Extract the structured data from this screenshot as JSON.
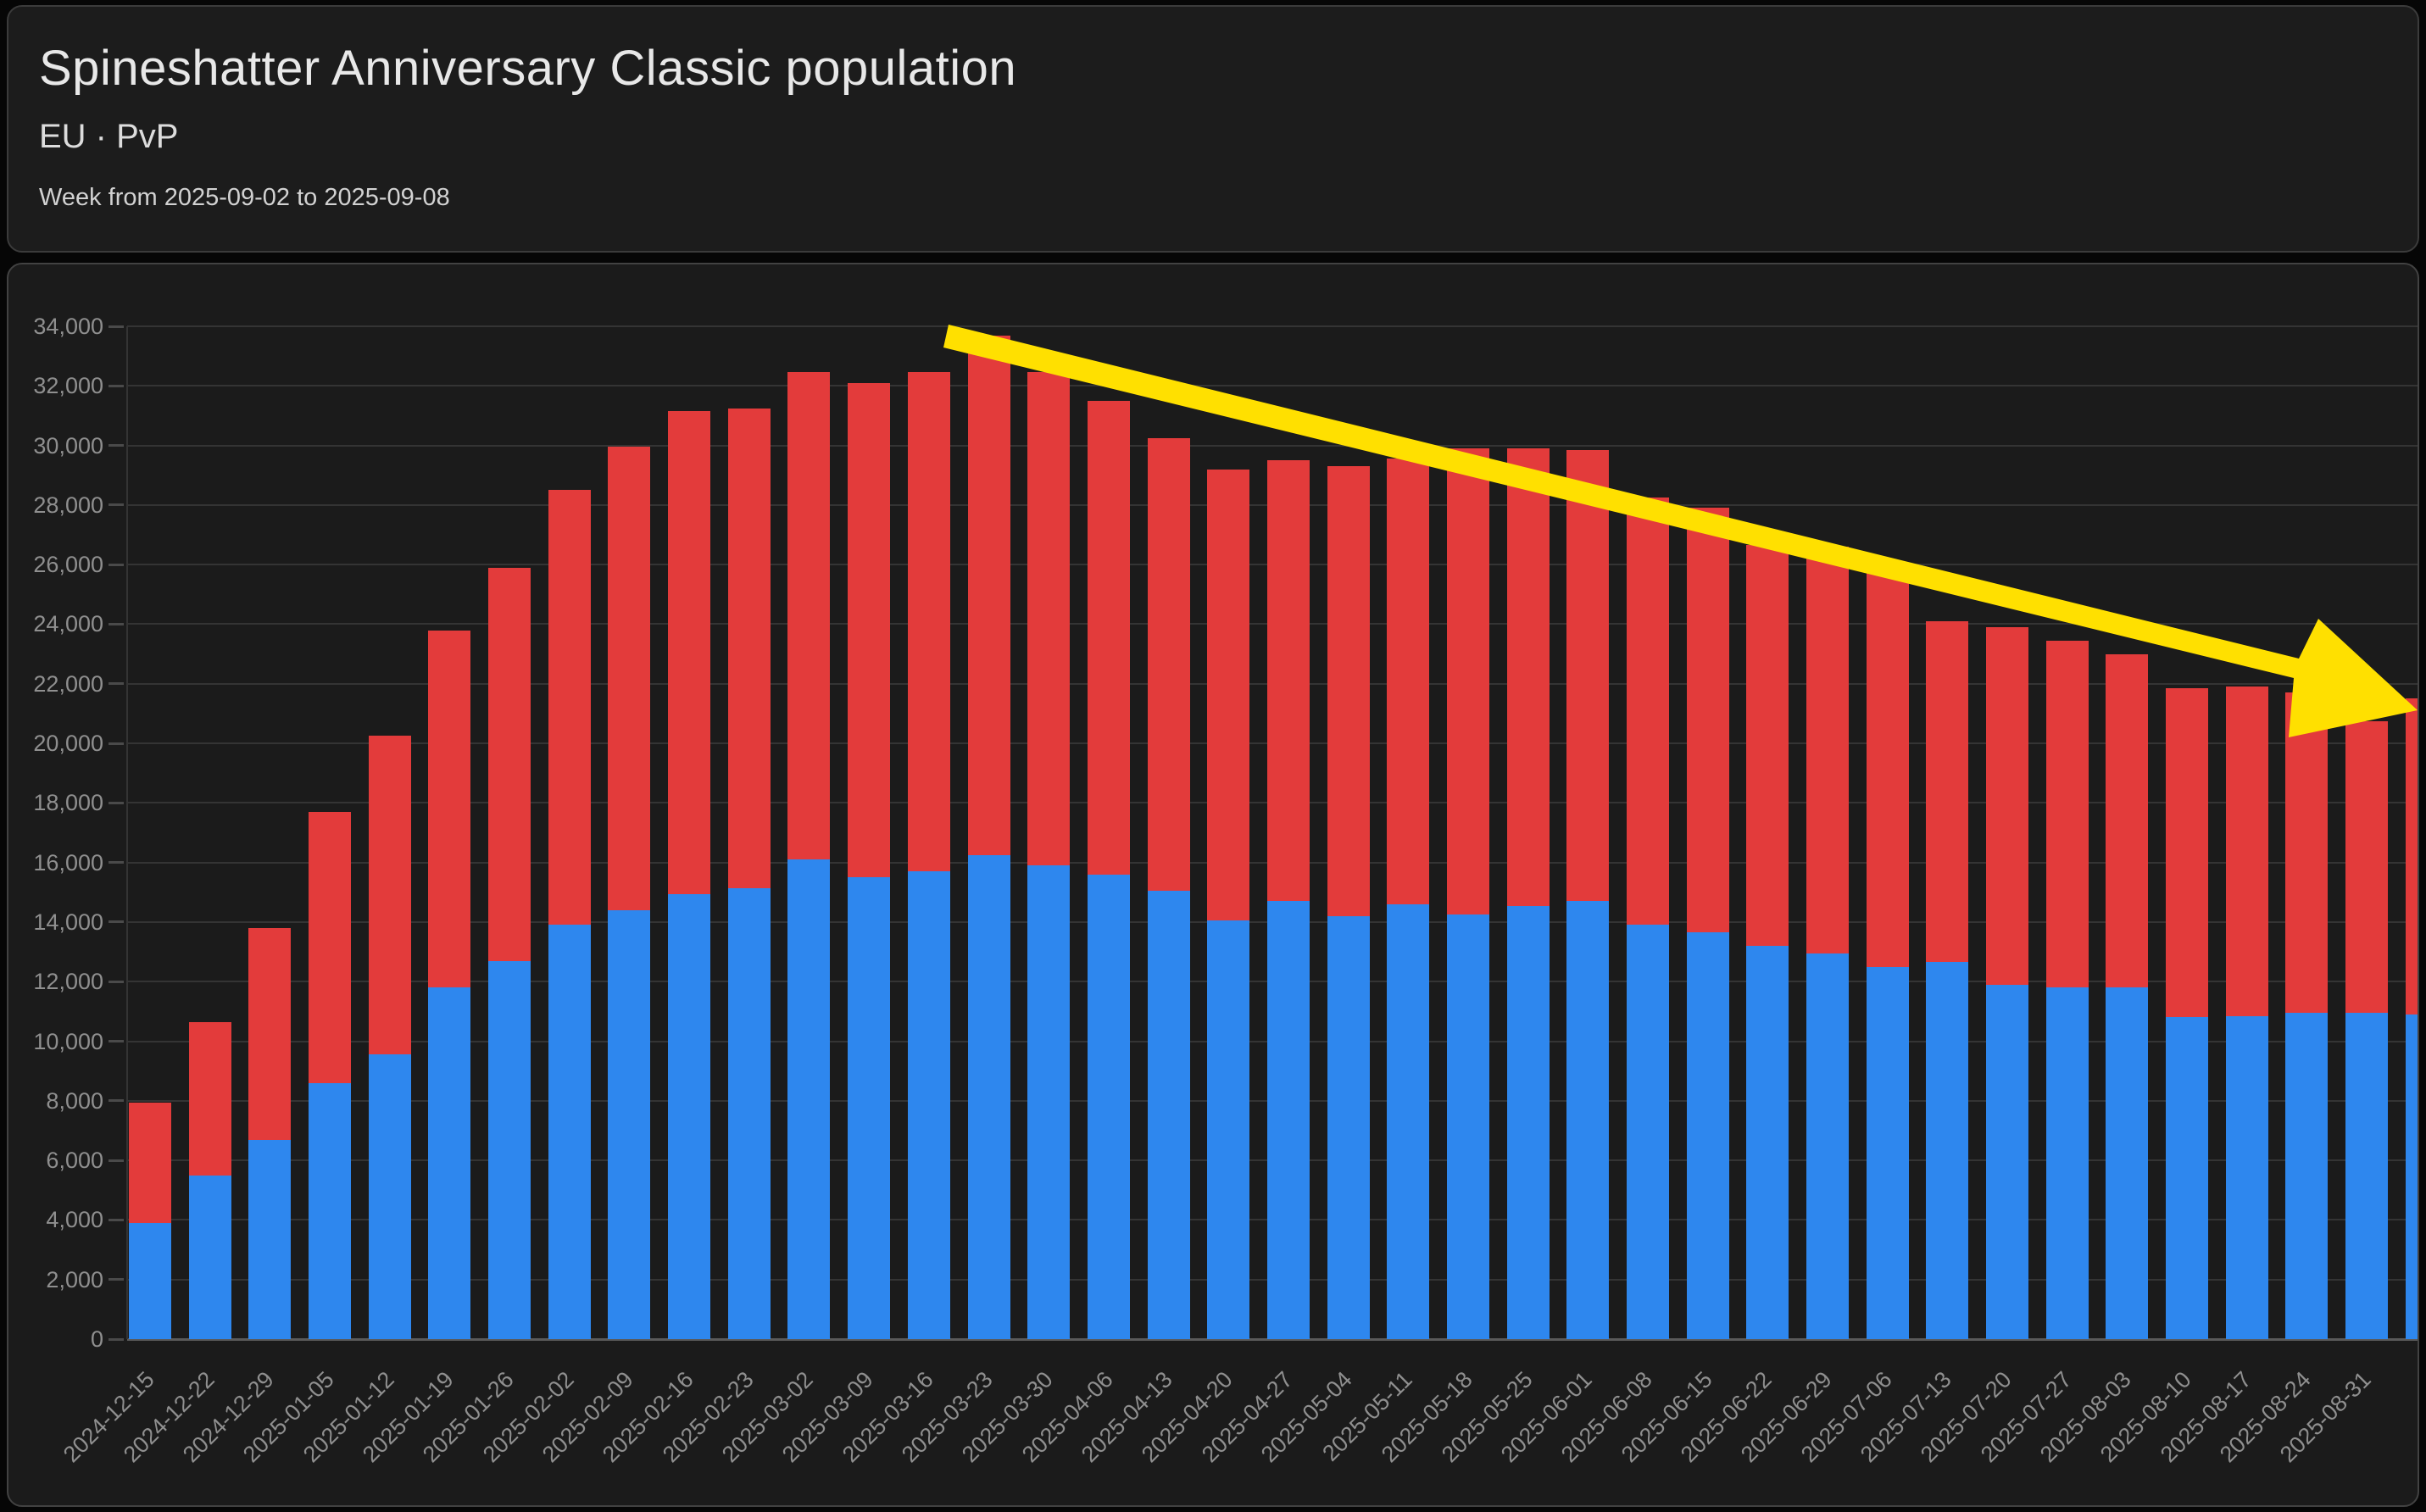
{
  "header": {
    "title": "Spineshatter Anniversary Classic population",
    "subtitle": "EU · PvP",
    "week_label": "Week from 2025-09-02 to 2025-09-08"
  },
  "chart_data": {
    "type": "bar",
    "stacked": true,
    "grid": true,
    "legend": "none",
    "xlabel": "",
    "ylabel": "",
    "ylim": [
      0,
      35000
    ],
    "ytick_step": 2000,
    "ytick_labels": [
      "0",
      "2,000",
      "4,000",
      "6,000",
      "8,000",
      "10,000",
      "12,000",
      "14,000",
      "16,000",
      "18,000",
      "20,000",
      "22,000",
      "24,000",
      "26,000",
      "28,000",
      "30,000",
      "32,000",
      "34,000"
    ],
    "categories": [
      "2024-12-15",
      "2024-12-22",
      "2024-12-29",
      "2025-01-05",
      "2025-01-12",
      "2025-01-19",
      "2025-01-26",
      "2025-02-02",
      "2025-02-09",
      "2025-02-16",
      "2025-02-23",
      "2025-03-02",
      "2025-03-09",
      "2025-03-16",
      "2025-03-23",
      "2025-03-30",
      "2025-04-06",
      "2025-04-13",
      "2025-04-20",
      "2025-04-27",
      "2025-05-04",
      "2025-05-11",
      "2025-05-18",
      "2025-05-25",
      "2025-06-01",
      "2025-06-08",
      "2025-06-15",
      "2025-06-22",
      "2025-06-29",
      "2025-07-06",
      "2025-07-13",
      "2025-07-20",
      "2025-07-27",
      "2025-08-03",
      "2025-08-10",
      "2025-08-17",
      "2025-08-24",
      "2025-08-31"
    ],
    "series": [
      {
        "name": "series_blue",
        "color": "#2e87ee",
        "values": [
          3900,
          5500,
          6700,
          8600,
          9550,
          11800,
          12700,
          13900,
          14400,
          14950,
          15150,
          16100,
          15500,
          15700,
          16250,
          15900,
          15600,
          15050,
          14050,
          14700,
          14200,
          14600,
          14250,
          14550,
          14700,
          13900,
          13650,
          13200,
          12950,
          12500,
          12650,
          11900,
          11800,
          11800,
          10800,
          10850,
          10950,
          10950
        ]
      },
      {
        "name": "series_red",
        "color": "#e33b3b",
        "values": [
          4050,
          5150,
          7100,
          9100,
          10700,
          12000,
          13200,
          14600,
          15550,
          16200,
          16100,
          16350,
          16600,
          16750,
          17450,
          16550,
          15900,
          15200,
          15150,
          14800,
          15100,
          14950,
          15650,
          15350,
          15150,
          14350,
          14250,
          13450,
          13650,
          13400,
          11450,
          12000,
          11650,
          11200,
          11050,
          11050,
          10750,
          9800
        ]
      }
    ],
    "totals": [
      7950,
      10650,
      13800,
      17700,
      20250,
      23800,
      25900,
      28500,
      29950,
      31150,
      31250,
      32450,
      32100,
      32450,
      33700,
      32450,
      31500,
      30250,
      29200,
      29500,
      29300,
      29550,
      29900,
      29900,
      29850,
      28250,
      27900,
      26650,
      26600,
      25900,
      24100,
      23900,
      23450,
      23000,
      21850,
      21900,
      21700,
      20750
    ],
    "partial_bar_at_right": {
      "series_blue": 10900,
      "series_red": 10600
    },
    "annotation": {
      "type": "downward-trend-arrow",
      "color": "#ffe000"
    }
  },
  "colors": {
    "page_background": "#060606",
    "card_background": "#1c1c1c",
    "chart_background": "#1b1b1b",
    "gridline": "#343434",
    "axis_text": "#8f8f8f",
    "title_text": "#e8e8e8",
    "bar_blue": "#2e87ee",
    "bar_red": "#e33b3b",
    "arrow_yellow": "#ffe000"
  }
}
